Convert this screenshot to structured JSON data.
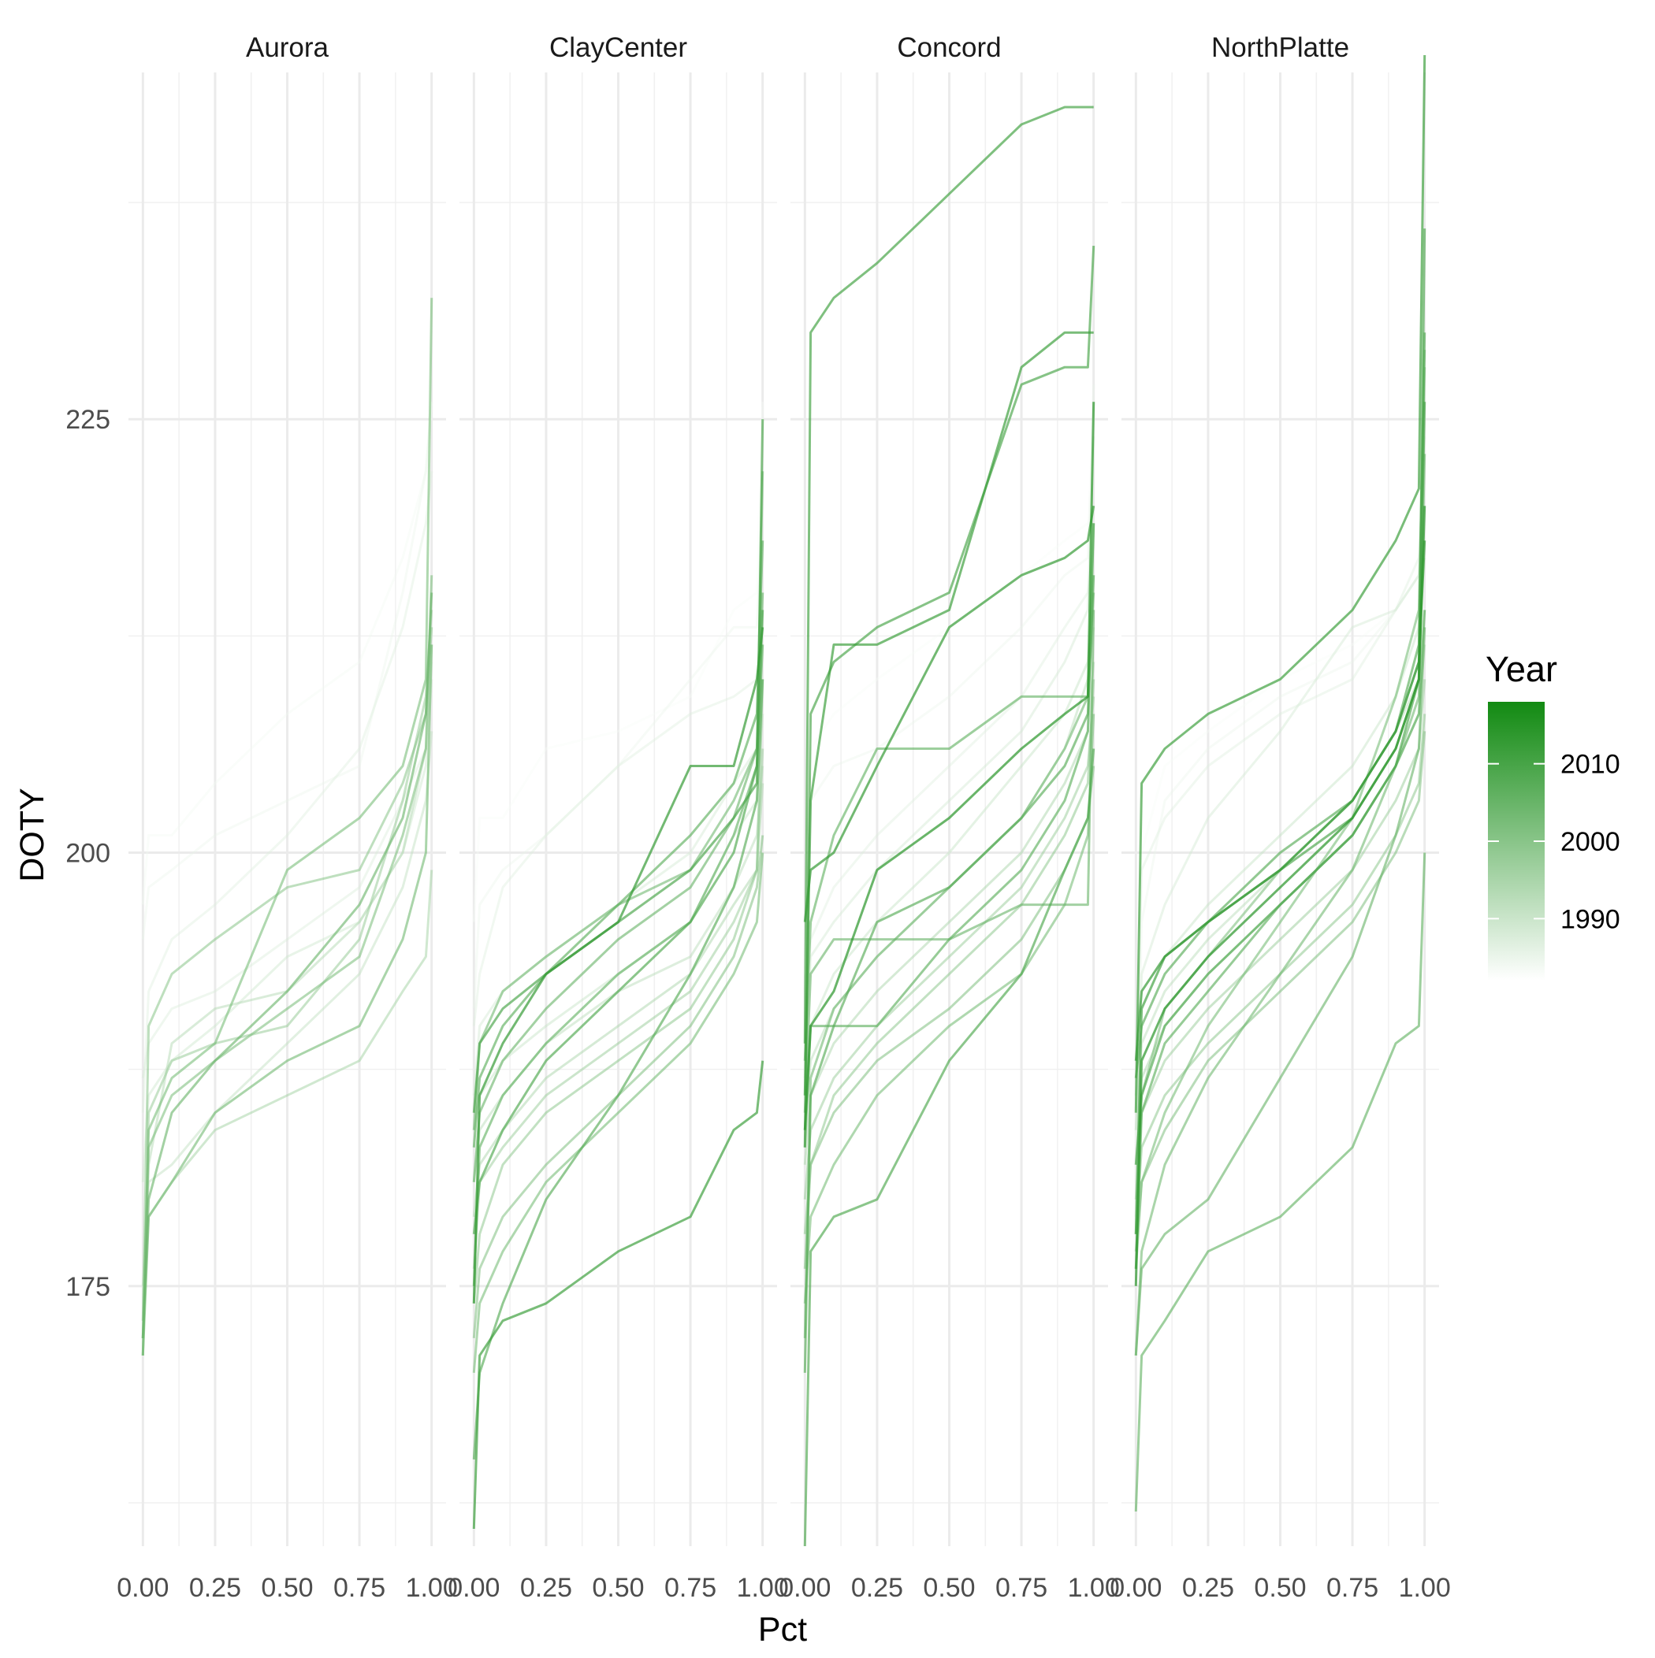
{
  "chart_data": {
    "type": "line",
    "facets": [
      "Aurora",
      "ClayCenter",
      "Concord",
      "NorthPlatte"
    ],
    "xlabel": "Pct",
    "ylabel": "DOTY",
    "x_ticks": [
      0,
      0.25,
      0.5,
      0.75,
      1
    ],
    "x_tick_labels": [
      "0.00",
      "0.25",
      "0.50",
      "0.75",
      "1.00"
    ],
    "y_ticks": [
      175,
      200,
      225
    ],
    "y_tick_labels": [
      "175",
      "200",
      "225"
    ],
    "xlim": [
      -0.05,
      1.05
    ],
    "ylim": [
      160,
      245
    ],
    "grid": true,
    "legend": {
      "title": "Year",
      "position": "right",
      "ticks": [
        1990,
        2000,
        2010
      ],
      "tick_labels": [
        "1990",
        "2000",
        "2010"
      ],
      "range": [
        1982,
        2018
      ],
      "color_low": "#ffffff",
      "color_high": "#128a12"
    },
    "x": [
      0,
      0.02,
      0.1,
      0.25,
      0.5,
      0.75,
      0.9,
      0.98,
      1
    ],
    "series": [
      {
        "facet": "Aurora",
        "year": 1984,
        "values": [
          197,
          201,
          201,
          204,
          208,
          211,
          217,
          222,
          226
        ]
      },
      {
        "facet": "Aurora",
        "year": 1985,
        "values": [
          195,
          198,
          199,
          201,
          203,
          205,
          215,
          222,
          226
        ]
      },
      {
        "facet": "Aurora",
        "year": 1987,
        "values": [
          185,
          192,
          195,
          197,
          201,
          206,
          213,
          219,
          222
        ]
      },
      {
        "facet": "Aurora",
        "year": 1988,
        "values": [
          187,
          189,
          191,
          192,
          195,
          198,
          203,
          206,
          211
        ]
      },
      {
        "facet": "Aurora",
        "year": 1990,
        "values": [
          181,
          186,
          188,
          190,
          194,
          196,
          200,
          205,
          210
        ]
      },
      {
        "facet": "Aurora",
        "year": 1992,
        "values": [
          175,
          181,
          182,
          185,
          189,
          193,
          198,
          203,
          207
        ]
      },
      {
        "facet": "Aurora",
        "year": 1994,
        "values": [
          172,
          182,
          189,
          191,
          192,
          196,
          200,
          206,
          212
        ]
      },
      {
        "facet": "Aurora",
        "year": 1996,
        "values": [
          172,
          179,
          181,
          184,
          186,
          188,
          192,
          194,
          199
        ]
      },
      {
        "facet": "Aurora",
        "year": 1998,
        "values": [
          171,
          185,
          188,
          189,
          190,
          195,
          203,
          209,
          214
        ]
      },
      {
        "facet": "Aurora",
        "year": 2000,
        "values": [
          173,
          190,
          193,
          195,
          198,
          199,
          204,
          208,
          213
        ]
      },
      {
        "facet": "Aurora",
        "year": 2002,
        "values": [
          171,
          183,
          186,
          188,
          191,
          194,
          201,
          206,
          216
        ]
      },
      {
        "facet": "Aurora",
        "year": 2003,
        "values": [
          172,
          184,
          187,
          189,
          199,
          202,
          205,
          210,
          232
        ]
      },
      {
        "facet": "Aurora",
        "year": 2004,
        "values": [
          171,
          179,
          181,
          185,
          188,
          190,
          195,
          200,
          212
        ]
      },
      {
        "facet": "Aurora",
        "year": 2005,
        "values": [
          172,
          180,
          185,
          188,
          192,
          197,
          202,
          208,
          215
        ]
      },
      {
        "facet": "ClayCenter",
        "year": 1983,
        "values": [
          196,
          202,
          202,
          206,
          207,
          209,
          214,
          215,
          226
        ]
      },
      {
        "facet": "ClayCenter",
        "year": 1985,
        "values": [
          191,
          197,
          199,
          201,
          205,
          210,
          213,
          213,
          220
        ]
      },
      {
        "facet": "ClayCenter",
        "year": 1987,
        "values": [
          190,
          193,
          198,
          201,
          205,
          208,
          209,
          210,
          215
        ]
      },
      {
        "facet": "ClayCenter",
        "year": 1989,
        "values": [
          186,
          190,
          192,
          194,
          197,
          200,
          204,
          206,
          212
        ]
      },
      {
        "facet": "ClayCenter",
        "year": 1991,
        "values": [
          184,
          186,
          188,
          190,
          193,
          196,
          201,
          203,
          208
        ]
      },
      {
        "facet": "ClayCenter",
        "year": 1993,
        "values": [
          181,
          184,
          186,
          189,
          192,
          194,
          198,
          201,
          205
        ]
      },
      {
        "facet": "ClayCenter",
        "year": 1995,
        "values": [
          179,
          182,
          184,
          187,
          190,
          193,
          197,
          199,
          204
        ]
      },
      {
        "facet": "ClayCenter",
        "year": 1997,
        "values": [
          176,
          181,
          183,
          186,
          189,
          192,
          196,
          199,
          206
        ]
      },
      {
        "facet": "ClayCenter",
        "year": 1999,
        "values": [
          174,
          178,
          182,
          185,
          188,
          191,
          195,
          199,
          210
        ]
      },
      {
        "facet": "ClayCenter",
        "year": 2001,
        "values": [
          172,
          176,
          179,
          182,
          186,
          190,
          194,
          198,
          201
        ]
      },
      {
        "facet": "ClayCenter",
        "year": 2003,
        "values": [
          170,
          174,
          177,
          181,
          185,
          189,
          193,
          196,
          200
        ]
      },
      {
        "facet": "ClayCenter",
        "year": 2004,
        "values": [
          184,
          189,
          192,
          194,
          197,
          199,
          203,
          206,
          222
        ]
      },
      {
        "facet": "ClayCenter",
        "year": 2005,
        "values": [
          181,
          185,
          188,
          191,
          195,
          198,
          202,
          206,
          215
        ]
      },
      {
        "facet": "ClayCenter",
        "year": 2006,
        "values": [
          175,
          183,
          186,
          189,
          193,
          196,
          201,
          205,
          212
        ]
      },
      {
        "facet": "ClayCenter",
        "year": 2007,
        "values": [
          183,
          187,
          190,
          193,
          197,
          201,
          204,
          208,
          218
        ]
      },
      {
        "facet": "ClayCenter",
        "year": 2008,
        "values": [
          165,
          170,
          174,
          180,
          186,
          193,
          198,
          203,
          210
        ]
      },
      {
        "facet": "ClayCenter",
        "year": 2009,
        "values": [
          178,
          181,
          184,
          188,
          192,
          196,
          200,
          205,
          214
        ]
      },
      {
        "facet": "ClayCenter",
        "year": 2010,
        "values": [
          185,
          189,
          191,
          193,
          196,
          199,
          202,
          204,
          225
        ]
      },
      {
        "facet": "ClayCenter",
        "year": 2012,
        "values": [
          161,
          171,
          173,
          174,
          177,
          179,
          184,
          185,
          188
        ]
      },
      {
        "facet": "ClayCenter",
        "year": 2013,
        "values": [
          174,
          186,
          189,
          193,
          196,
          205,
          205,
          210,
          213
        ]
      },
      {
        "facet": "Concord",
        "year": 1983,
        "values": [
          193,
          206,
          208,
          210,
          213,
          216,
          218,
          219,
          220
        ]
      },
      {
        "facet": "Concord",
        "year": 1985,
        "values": [
          192,
          203,
          205,
          206,
          209,
          213,
          216,
          217,
          227
        ]
      },
      {
        "facet": "Concord",
        "year": 1987,
        "values": [
          188,
          195,
          198,
          201,
          205,
          209,
          213,
          215,
          218
        ]
      },
      {
        "facet": "Concord",
        "year": 1989,
        "values": [
          187,
          194,
          196,
          199,
          203,
          207,
          211,
          214,
          224
        ]
      },
      {
        "facet": "Concord",
        "year": 1991,
        "values": [
          186,
          190,
          193,
          196,
          200,
          205,
          208,
          211,
          216
        ]
      },
      {
        "facet": "Concord",
        "year": 1993,
        "values": [
          184,
          188,
          191,
          194,
          198,
          202,
          206,
          210,
          213
        ]
      },
      {
        "facet": "Concord",
        "year": 1995,
        "values": [
          182,
          186,
          189,
          192,
          196,
          200,
          204,
          207,
          211
        ]
      },
      {
        "facet": "Concord",
        "year": 1997,
        "values": [
          180,
          184,
          187,
          190,
          194,
          198,
          202,
          205,
          209
        ]
      },
      {
        "facet": "Concord",
        "year": 1999,
        "values": [
          178,
          182,
          186,
          189,
          193,
          197,
          201,
          204,
          210
        ]
      },
      {
        "facet": "Concord",
        "year": 2001,
        "values": [
          176,
          182,
          185,
          188,
          191,
          195,
          199,
          202,
          205
        ]
      },
      {
        "facet": "Concord",
        "year": 2003,
        "values": [
          174,
          179,
          182,
          186,
          190,
          193,
          197,
          201,
          208
        ]
      },
      {
        "facet": "Concord",
        "year": 2004,
        "values": [
          172,
          187,
          191,
          194,
          198,
          202,
          206,
          209,
          215
        ]
      },
      {
        "facet": "Concord",
        "year": 2005,
        "values": [
          185,
          193,
          195,
          195,
          195,
          197,
          197,
          197,
          214
        ]
      },
      {
        "facet": "Concord",
        "year": 2006,
        "values": [
          188,
          196,
          201,
          206,
          206,
          209,
          209,
          209,
          219
        ]
      },
      {
        "facet": "Concord",
        "year": 2007,
        "values": [
          183,
          190,
          190,
          190,
          195,
          199,
          203,
          207,
          219
        ]
      },
      {
        "facet": "Concord",
        "year": 2008,
        "values": [
          170,
          186,
          190,
          196,
          198,
          202,
          205,
          208,
          216
        ]
      },
      {
        "facet": "Concord",
        "year": 2009,
        "values": [
          160,
          177,
          179,
          180,
          188,
          193,
          199,
          202,
          206
        ]
      },
      {
        "facet": "Concord",
        "year": 2010,
        "values": [
          183,
          208,
          211,
          213,
          215,
          227,
          228,
          228,
          235
        ]
      },
      {
        "facet": "Concord",
        "year": 2011,
        "values": [
          189,
          230,
          232,
          234,
          238,
          242,
          243,
          243,
          243
        ]
      },
      {
        "facet": "Concord",
        "year": 2012,
        "values": [
          186,
          203,
          212,
          212,
          214,
          228,
          230,
          230,
          230
        ]
      },
      {
        "facet": "Concord",
        "year": 2013,
        "values": [
          196,
          199,
          200,
          205,
          213,
          216,
          217,
          218,
          220
        ]
      },
      {
        "facet": "Concord",
        "year": 2014,
        "values": [
          184,
          190,
          192,
          199,
          202,
          206,
          208,
          209,
          226
        ]
      },
      {
        "facet": "NorthPlatte",
        "year": 1983,
        "values": [
          183,
          200,
          205,
          207,
          210,
          212,
          214,
          216,
          220
        ]
      },
      {
        "facet": "NorthPlatte",
        "year": 1985,
        "values": [
          181,
          196,
          203,
          206,
          209,
          211,
          214,
          216,
          221
        ]
      },
      {
        "facet": "NorthPlatte",
        "year": 1987,
        "values": [
          185,
          199,
          202,
          205,
          208,
          210,
          214,
          217,
          223
        ]
      },
      {
        "facet": "NorthPlatte",
        "year": 1989,
        "values": [
          179,
          193,
          197,
          202,
          207,
          213,
          214,
          216,
          224
        ]
      },
      {
        "facet": "NorthPlatte",
        "year": 1991,
        "values": [
          186,
          191,
          194,
          197,
          201,
          205,
          209,
          213,
          217
        ]
      },
      {
        "facet": "NorthPlatte",
        "year": 1993,
        "values": [
          184,
          189,
          192,
          195,
          199,
          203,
          207,
          210,
          214
        ]
      },
      {
        "facet": "NorthPlatte",
        "year": 1995,
        "values": [
          182,
          187,
          190,
          193,
          197,
          201,
          205,
          208,
          212
        ]
      },
      {
        "facet": "NorthPlatte",
        "year": 1997,
        "values": [
          180,
          185,
          188,
          191,
          195,
          199,
          203,
          206,
          210
        ]
      },
      {
        "facet": "NorthPlatte",
        "year": 1999,
        "values": [
          178,
          183,
          186,
          189,
          193,
          197,
          201,
          204,
          208
        ]
      },
      {
        "facet": "NorthPlatte",
        "year": 2001,
        "values": [
          177,
          181,
          184,
          188,
          192,
          196,
          200,
          203,
          207
        ]
      },
      {
        "facet": "NorthPlatte",
        "year": 2002,
        "values": [
          178,
          186,
          191,
          194,
          199,
          203,
          207,
          211,
          228
        ]
      },
      {
        "facet": "NorthPlatte",
        "year": 2003,
        "values": [
          176,
          181,
          185,
          190,
          196,
          202,
          209,
          214,
          229
        ]
      },
      {
        "facet": "NorthPlatte",
        "year": 2004,
        "values": [
          171,
          177,
          182,
          187,
          193,
          199,
          205,
          209,
          223
        ]
      },
      {
        "facet": "NorthPlatte",
        "year": 2005,
        "values": [
          171,
          176,
          178,
          180,
          187,
          194,
          201,
          206,
          213
        ]
      },
      {
        "facet": "NorthPlatte",
        "year": 2006,
        "values": [
          162,
          171,
          173,
          177,
          179,
          183,
          189,
          190,
          200
        ]
      },
      {
        "facet": "NorthPlatte",
        "year": 2007,
        "values": [
          176,
          185,
          189,
          192,
          197,
          201,
          205,
          208,
          214
        ]
      },
      {
        "facet": "NorthPlatte",
        "year": 2008,
        "values": [
          187,
          190,
          193,
          196,
          200,
          203,
          207,
          212,
          230
        ]
      },
      {
        "facet": "NorthPlatte",
        "year": 2009,
        "values": [
          182,
          186,
          190,
          193,
          197,
          201,
          205,
          210,
          236
        ]
      },
      {
        "facet": "NorthPlatte",
        "year": 2010,
        "values": [
          178,
          191,
          194,
          196,
          199,
          202,
          206,
          210,
          226
        ]
      },
      {
        "facet": "NorthPlatte",
        "year": 2012,
        "values": [
          185,
          204,
          206,
          208,
          210,
          214,
          218,
          221,
          246
        ]
      },
      {
        "facet": "NorthPlatte",
        "year": 2013,
        "values": [
          188,
          192,
          194,
          196,
          199,
          203,
          207,
          211,
          218
        ]
      },
      {
        "facet": "NorthPlatte",
        "year": 2014,
        "values": [
          175,
          188,
          191,
          194,
          198,
          202,
          206,
          210,
          220
        ]
      }
    ]
  }
}
